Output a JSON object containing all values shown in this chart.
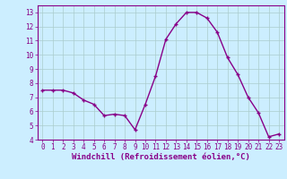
{
  "x": [
    0,
    1,
    2,
    3,
    4,
    5,
    6,
    7,
    8,
    9,
    10,
    11,
    12,
    13,
    14,
    15,
    16,
    17,
    18,
    19,
    20,
    21,
    22,
    23
  ],
  "y": [
    7.5,
    7.5,
    7.5,
    7.3,
    6.8,
    6.5,
    5.7,
    5.8,
    5.7,
    4.7,
    6.5,
    8.5,
    11.1,
    12.2,
    13.0,
    13.0,
    12.6,
    11.6,
    9.8,
    8.6,
    7.0,
    5.9,
    4.2,
    4.4
  ],
  "line_color": "#880088",
  "marker": "+",
  "marker_size": 3,
  "linewidth": 1.0,
  "bg_color": "#cceeff",
  "grid_color": "#aacccc",
  "xlabel": "Windchill (Refroidissement éolien,°C)",
  "xlabel_color": "#880088",
  "xlabel_fontsize": 6.5,
  "ylim": [
    4,
    13.5
  ],
  "xlim": [
    -0.5,
    23.5
  ],
  "yticks": [
    4,
    5,
    6,
    7,
    8,
    9,
    10,
    11,
    12,
    13
  ],
  "xticks": [
    0,
    1,
    2,
    3,
    4,
    5,
    6,
    7,
    8,
    9,
    10,
    11,
    12,
    13,
    14,
    15,
    16,
    17,
    18,
    19,
    20,
    21,
    22,
    23
  ],
  "tick_fontsize": 5.5,
  "tick_color": "#880088",
  "spine_color": "#880088"
}
